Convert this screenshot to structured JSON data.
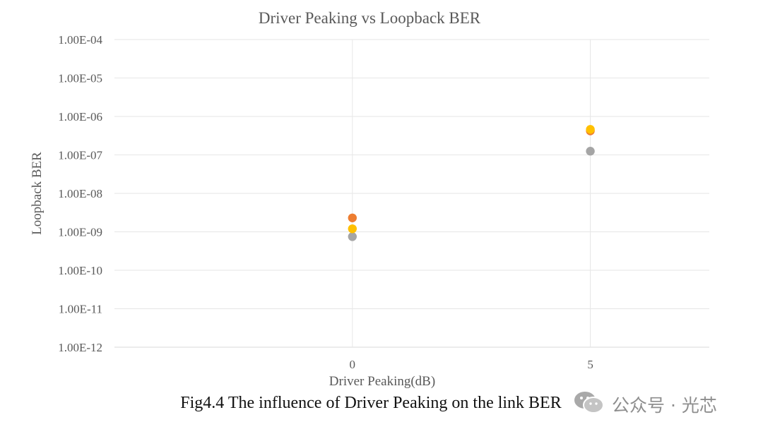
{
  "chart_data": {
    "type": "scatter",
    "title": "Driver Peaking  vs Loopback BER",
    "xlabel": "Driver Peaking(dB)",
    "ylabel": "Loopback BER",
    "x_tick_labels": [
      "0",
      "5"
    ],
    "x_tick_values": [
      0,
      5
    ],
    "xlim": [
      -5,
      7.5
    ],
    "y_scale": "log",
    "ylim": [
      1e-12,
      0.0001
    ],
    "y_tick_labels": [
      "1.00E-04",
      "1.00E-05",
      "1.00E-06",
      "1.00E-07",
      "1.00E-08",
      "1.00E-09",
      "1.00E-10",
      "1.00E-11",
      "1.00E-12"
    ],
    "grid": true,
    "legend": "none",
    "series": [
      {
        "color": "#ED7D31",
        "points": [
          {
            "x": 0,
            "y": 2.3e-09
          },
          {
            "x": 5,
            "y": 4.2e-07
          }
        ]
      },
      {
        "color": "#A5A5A5",
        "points": [
          {
            "x": 0,
            "y": 7.5e-10
          },
          {
            "x": 5,
            "y": 1.25e-07
          }
        ]
      },
      {
        "color": "#FFC000",
        "points": [
          {
            "x": 0,
            "y": 1.2e-09
          },
          {
            "x": 5,
            "y": 4.6e-07
          }
        ]
      }
    ]
  },
  "caption": "Fig4.4 The influence of Driver Peaking on the link BER",
  "watermark": {
    "icon": "wechat-icon",
    "text": "公众号 · 光芯"
  }
}
